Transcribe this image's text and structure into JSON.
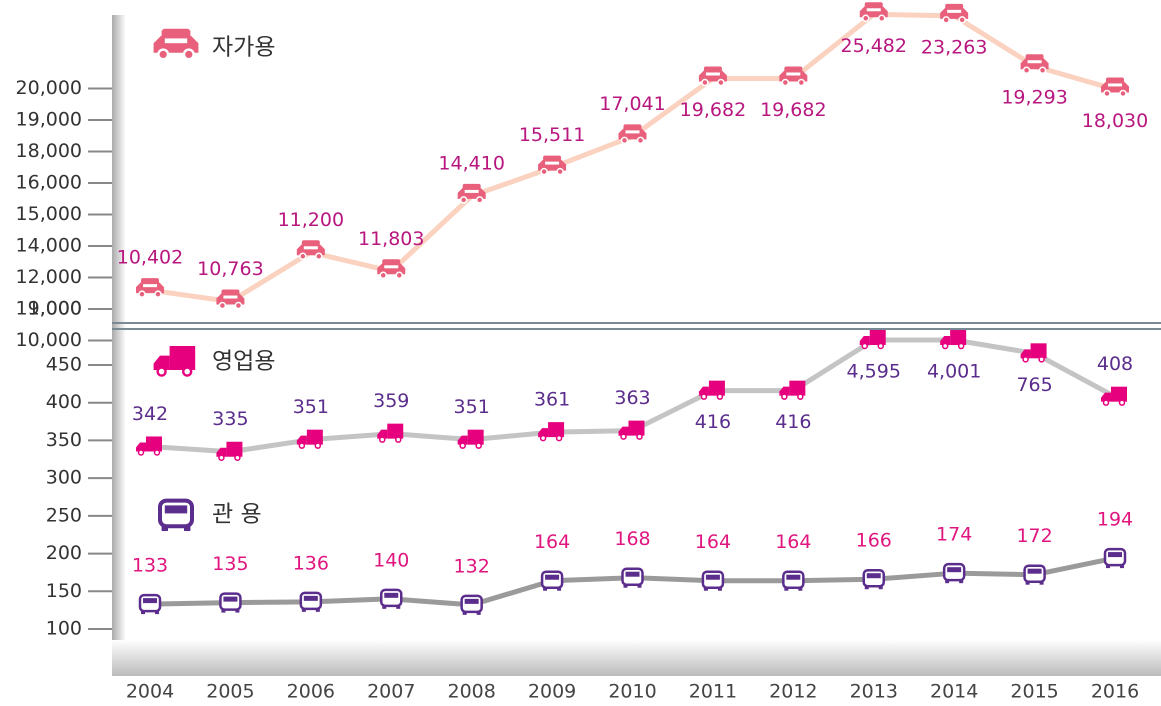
{
  "chart_data": [
    {
      "type": "line",
      "series": [
        {
          "name": "자가용",
          "color": "#e8607c",
          "line_color": "#fad2bf",
          "label_color": "#b8177f",
          "values": [
            10402,
            10763,
            11200,
            11803,
            14410,
            15511,
            17041,
            19682,
            19682,
            25482,
            23263,
            19293,
            18030
          ],
          "value_labels": [
            "10,402",
            "10,763",
            "11,200",
            "11,803",
            "14,410",
            "15,511",
            "17,041",
            "19,682",
            "19,682",
            "25,482",
            "23,263",
            "19,293",
            "18,030"
          ]
        }
      ],
      "ylim": [
        9000,
        20000
      ],
      "yticks": [
        {
          "value": 9000,
          "label": "9,000"
        },
        {
          "value": 10000,
          "label": "10,000"
        },
        {
          "value": 11000,
          "label": "11,000"
        },
        {
          "value": 12000,
          "label": "12,000"
        },
        {
          "value": 14000,
          "label": "14,000"
        },
        {
          "value": 15000,
          "label": "15,000"
        },
        {
          "value": 16000,
          "label": "16,000"
        },
        {
          "value": 18000,
          "label": "18,000"
        },
        {
          "value": 19000,
          "label": "19,000"
        },
        {
          "value": 20000,
          "label": "20,000"
        }
      ]
    },
    {
      "type": "line",
      "categories": [
        "2004",
        "2005",
        "2006",
        "2007",
        "2008",
        "2009",
        "2010",
        "2011",
        "2012",
        "2013",
        "2014",
        "2015",
        "2016"
      ],
      "series": [
        {
          "name": "영업용",
          "color": "#e6007e",
          "line_color": "#c4c4c4",
          "label_color": "#5b2d8c",
          "marker": "truck",
          "values": [
            342,
            335,
            351,
            359,
            351,
            361,
            363,
            416,
            416,
            4595,
            4001,
            765,
            408
          ],
          "value_labels": [
            "342",
            "335",
            "351",
            "359",
            "351",
            "361",
            "363",
            "416",
            "416",
            "4,595",
            "4,001",
            "765",
            "408"
          ]
        },
        {
          "name": "관 용",
          "color": "#5b2d8c",
          "line_color": "#9a9a9a",
          "label_color": "#e0157f",
          "marker": "van",
          "values": [
            133,
            135,
            136,
            140,
            132,
            164,
            168,
            164,
            164,
            166,
            174,
            172,
            194
          ]
        }
      ],
      "ylim": [
        100,
        450
      ],
      "yticks": [
        100,
        150,
        200,
        250,
        300,
        350,
        400,
        450
      ]
    }
  ]
}
